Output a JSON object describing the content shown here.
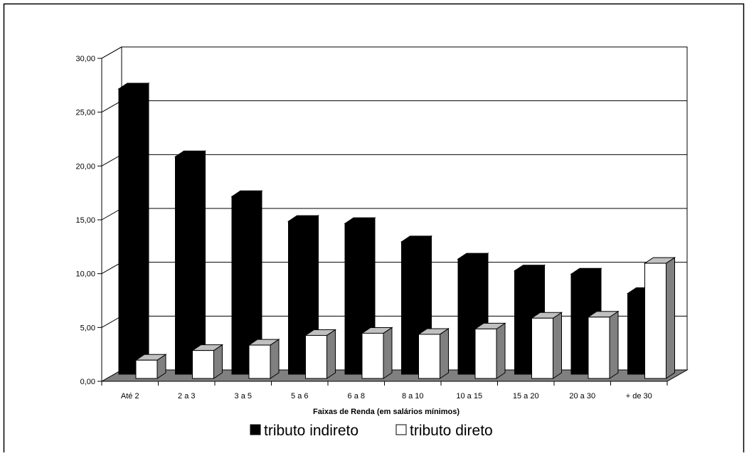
{
  "chart_data": {
    "type": "bar",
    "title": "",
    "xlabel": "Faixas de Renda (em salários mínimos)",
    "ylabel": "",
    "ylim": [
      0,
      30
    ],
    "yticks": [
      "0,00",
      "5,00",
      "10,00",
      "15,00",
      "20,00",
      "25,00",
      "30,00"
    ],
    "categories": [
      "Até 2",
      "2 a 3",
      "3 a 5",
      "5 a 6",
      "6 a 8",
      "8 a 10",
      "10 a 15",
      "15 a 20",
      "20 a 30",
      "+ de 30"
    ],
    "series": [
      {
        "name": "tributo indireto",
        "color": "#000000",
        "values": [
          26.5,
          20.2,
          16.5,
          14.2,
          14.0,
          12.3,
          10.7,
          9.6,
          9.3,
          7.5
        ]
      },
      {
        "name": "tributo direto",
        "color": "#ffffff",
        "values": [
          1.7,
          2.6,
          3.1,
          4.0,
          4.2,
          4.1,
          4.6,
          5.6,
          5.7,
          10.7
        ]
      }
    ],
    "grid": true,
    "legend": "bottom",
    "style": "3d-bars"
  }
}
